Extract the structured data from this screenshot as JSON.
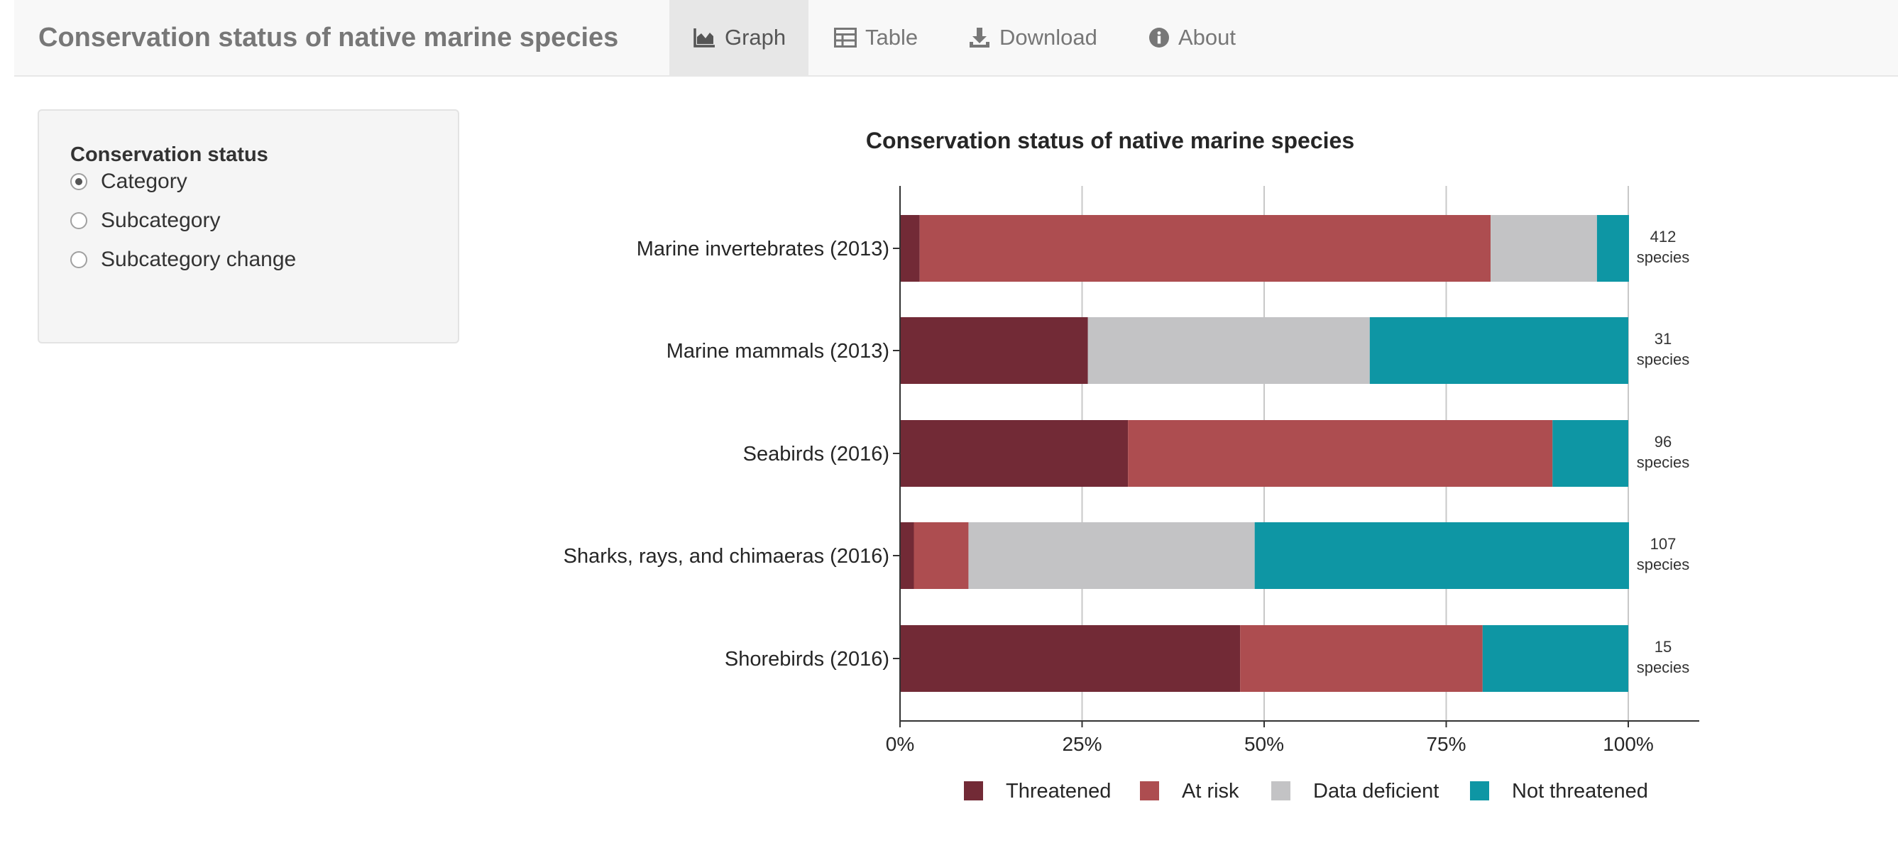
{
  "app": {
    "title": "Conservation status of native marine species"
  },
  "nav": {
    "tabs": [
      {
        "label": "Graph",
        "icon": "area-chart-icon",
        "active": true
      },
      {
        "label": "Table",
        "icon": "table-icon",
        "active": false
      },
      {
        "label": "Download",
        "icon": "download-icon",
        "active": false
      },
      {
        "label": "About",
        "icon": "info-circle-icon",
        "active": false
      }
    ]
  },
  "sidebar": {
    "title": "Conservation status",
    "options": [
      {
        "label": "Category",
        "checked": true
      },
      {
        "label": "Subcategory",
        "checked": false
      },
      {
        "label": "Subcategory change",
        "checked": false
      }
    ]
  },
  "chart_data": {
    "type": "bar",
    "orientation": "horizontal",
    "stacked": true,
    "title": "Conservation status of native marine species",
    "xlabel": "",
    "ylabel": "",
    "xlim": [
      0,
      100
    ],
    "x_ticks": [
      "0%",
      "25%",
      "50%",
      "75%",
      "100%"
    ],
    "x_tick_values": [
      0,
      25,
      50,
      75,
      100
    ],
    "categories": [
      "Marine invertebrates (2013)",
      "Marine mammals (2013)",
      "Seabirds (2016)",
      "Sharks, rays, and chimaeras (2016)",
      "Shorebirds (2016)"
    ],
    "series": [
      {
        "name": "Threatened",
        "color": "#722a36",
        "values": [
          2.7,
          25.8,
          31.3,
          1.9,
          46.7
        ]
      },
      {
        "name": "At risk",
        "color": "#ad4d50",
        "values": [
          78.4,
          0.0,
          58.3,
          7.5,
          33.3
        ]
      },
      {
        "name": "Data deficient",
        "color": "#c3c3c5",
        "values": [
          14.6,
          38.7,
          0.0,
          39.3,
          0.0
        ]
      },
      {
        "name": "Not threatened",
        "color": "#0e96a4",
        "values": [
          4.4,
          35.5,
          10.4,
          51.4,
          20.0
        ]
      }
    ],
    "species_counts": [
      [
        "412",
        "species"
      ],
      [
        "31",
        "species"
      ],
      [
        "96",
        "species"
      ],
      [
        "107",
        "species"
      ],
      [
        "15",
        "species"
      ]
    ],
    "grid": true,
    "legend_position": "bottom"
  }
}
